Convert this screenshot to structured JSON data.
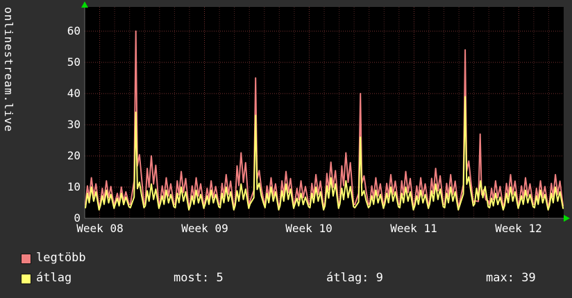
{
  "panel": {
    "vertical_title": "onlinestream.live",
    "background": "#2e2e2e"
  },
  "chart_data": {
    "type": "line",
    "title": "onlinestream.live",
    "x_tick_labels": [
      "Week 08",
      "Week 09",
      "Week 10",
      "Week 11",
      "Week 12"
    ],
    "x_unit": "time, ~4.5 weeks shown with daily oscillation",
    "days_shown": 32,
    "week_tick_days": [
      1,
      8,
      15,
      22,
      29
    ],
    "y_ticks": [
      0,
      10,
      20,
      30,
      40,
      50,
      60
    ],
    "ylim": [
      0,
      67
    ],
    "grid": true,
    "legend_position": "bottom-left",
    "colors": {
      "plot_background": "#000000",
      "grid_major": "#7c3232",
      "grid_minor": "#552626",
      "axis": "#6a6a6a",
      "arrow": "#00dd00",
      "text": "#ffffff"
    },
    "series": [
      {
        "name": "legtöbb",
        "color": "#f08080",
        "base": 5,
        "daily_peaks": [
          13,
          12,
          10,
          60,
          20,
          13,
          15,
          13,
          12,
          14,
          21,
          45,
          13,
          15,
          12,
          14,
          18,
          21,
          40,
          13,
          14,
          15,
          13,
          16,
          14,
          54,
          27,
          12,
          14,
          13,
          12,
          14
        ]
      },
      {
        "name": "átlag",
        "color": "#ffff70",
        "base": 4,
        "daily_peaks": [
          10,
          9,
          8,
          34,
          11,
          9,
          10,
          9,
          9,
          10,
          11,
          33,
          10,
          11,
          8,
          10,
          13,
          12,
          26,
          9,
          10,
          10,
          9,
          11,
          10,
          39,
          12,
          8,
          10,
          9,
          9,
          10
        ]
      }
    ]
  },
  "legend": {
    "items": [
      {
        "label": "legtöbb",
        "color": "#f08080"
      },
      {
        "label": "átlag",
        "color": "#ffff70"
      }
    ]
  },
  "stats": [
    {
      "label": "most:",
      "value": "5"
    },
    {
      "label": "átlag:",
      "value": "9"
    },
    {
      "label": "max:",
      "value": "39"
    }
  ]
}
